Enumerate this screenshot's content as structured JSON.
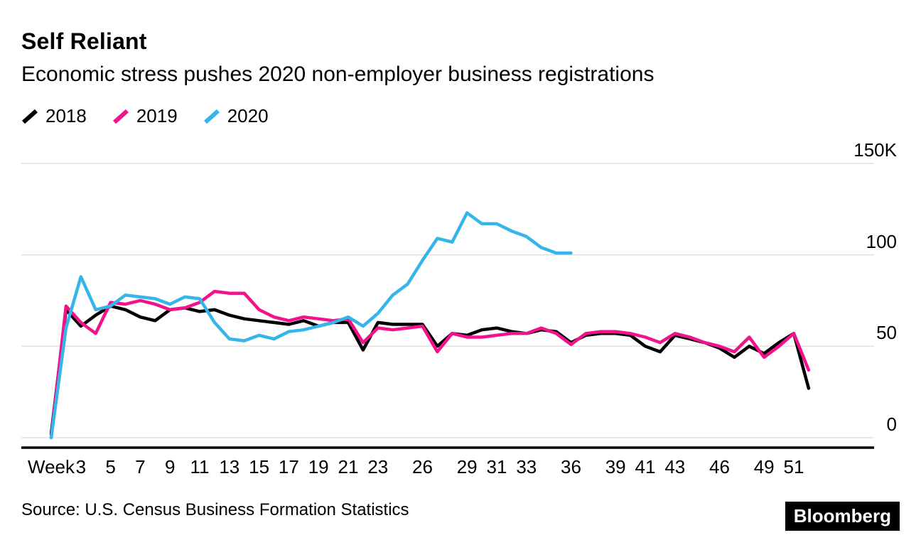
{
  "chart_data": {
    "type": "line",
    "title": "Self Reliant",
    "subtitle": "Economic stress pushes 2020 non-employer business registrations",
    "xlabel": "Week",
    "ylabel": "",
    "x_unit": "week",
    "ylim": [
      0,
      150
    ],
    "grid": true,
    "legend_position": "top-left",
    "colors": {
      "grid": "#e2e2e2",
      "axis": "#000000"
    },
    "y_ticks": [
      {
        "value": 150,
        "label": "150K"
      },
      {
        "value": 100,
        "label": "100"
      },
      {
        "value": 50,
        "label": "50"
      },
      {
        "value": 0,
        "label": "0"
      }
    ],
    "x_ticks": [
      {
        "week": 1,
        "label": "Week"
      },
      {
        "week": 3,
        "label": "3"
      },
      {
        "week": 5,
        "label": "5"
      },
      {
        "week": 7,
        "label": "7"
      },
      {
        "week": 9,
        "label": "9"
      },
      {
        "week": 11,
        "label": "11"
      },
      {
        "week": 13,
        "label": "13"
      },
      {
        "week": 15,
        "label": "15"
      },
      {
        "week": 17,
        "label": "17"
      },
      {
        "week": 19,
        "label": "19"
      },
      {
        "week": 21,
        "label": "21"
      },
      {
        "week": 23,
        "label": "23"
      },
      {
        "week": 26,
        "label": "26"
      },
      {
        "week": 29,
        "label": "29"
      },
      {
        "week": 31,
        "label": "31"
      },
      {
        "week": 33,
        "label": "33"
      },
      {
        "week": 36,
        "label": "36"
      },
      {
        "week": 39,
        "label": "39"
      },
      {
        "week": 41,
        "label": "41"
      },
      {
        "week": 43,
        "label": "43"
      },
      {
        "week": 46,
        "label": "46"
      },
      {
        "week": 49,
        "label": "49"
      },
      {
        "week": 51,
        "label": "51"
      }
    ],
    "series": [
      {
        "name": "2018",
        "color": "#000000",
        "values": [
          2,
          70,
          61,
          67,
          72,
          70,
          66,
          64,
          70,
          71,
          69,
          70,
          67,
          65,
          64,
          63,
          62,
          64,
          61,
          63,
          63,
          48,
          63,
          62,
          62,
          62,
          50,
          57,
          56,
          59,
          60,
          58,
          57,
          59,
          58,
          52,
          56,
          57,
          57,
          56,
          50,
          47,
          56,
          54,
          52,
          49,
          44,
          50,
          46,
          52,
          57,
          27
        ]
      },
      {
        "name": "2019",
        "color": "#f2128b",
        "values": [
          0,
          72,
          63,
          57,
          74,
          73,
          75,
          73,
          70,
          71,
          74,
          80,
          79,
          79,
          70,
          66,
          64,
          66,
          65,
          64,
          65,
          52,
          60,
          59,
          60,
          61,
          47,
          57,
          55,
          55,
          56,
          57,
          57,
          60,
          57,
          51,
          57,
          58,
          58,
          57,
          55,
          52,
          57,
          55,
          52,
          50,
          47,
          55,
          44,
          50,
          57,
          37
        ]
      },
      {
        "name": "2020",
        "color": "#35b5e8",
        "values": [
          0,
          60,
          88,
          70,
          72,
          78,
          77,
          76,
          73,
          77,
          76,
          63,
          54,
          53,
          56,
          54,
          58,
          59,
          61,
          63,
          66,
          61,
          68,
          78,
          84,
          97,
          109,
          107,
          123,
          117,
          117,
          113,
          110,
          104,
          101,
          101,
          null,
          null,
          null,
          null,
          null,
          null,
          null,
          null,
          null,
          null,
          null,
          null,
          null,
          null,
          null,
          null
        ]
      }
    ]
  },
  "footer": {
    "source": "Source: U.S. Census Business Formation Statistics",
    "logo": "Bloomberg"
  }
}
